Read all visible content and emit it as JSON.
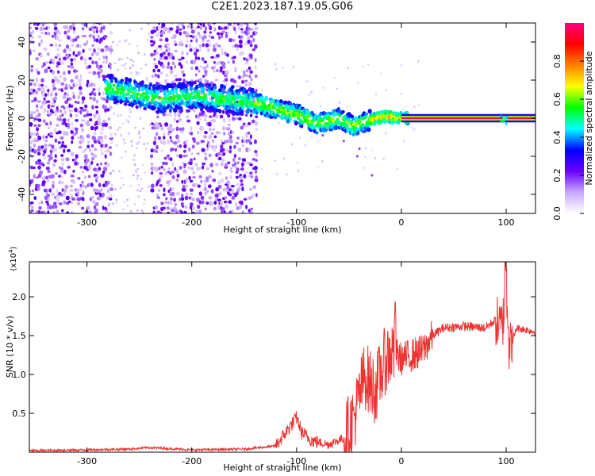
{
  "title": "C2E1.2023.187.19.05.G06",
  "chart_data": [
    {
      "type": "heatmap",
      "xlabel": "Height of straight line (km)",
      "ylabel": "Frequency (Hz)",
      "xlim": [
        -355,
        128
      ],
      "ylim": [
        -50,
        50
      ],
      "xticks": [
        -300,
        -200,
        -100,
        0,
        100
      ],
      "yticks": [
        -40,
        -20,
        0,
        20,
        40
      ],
      "colorbar": {
        "label": "Normalized spectral amplitude",
        "range": [
          0.0,
          1.0
        ],
        "ticks": [
          "0.0",
          "0.2",
          "0.4",
          "0.6",
          "0.8"
        ],
        "colors": [
          "#ffffff",
          "#c8a8ff",
          "#6a00ff",
          "#0000ff",
          "#00ffff",
          "#00ff00",
          "#ffff00",
          "#ff8000",
          "#ff0000",
          "#ff0080"
        ]
      },
      "features": [
        {
          "name": "noise-band",
          "x_range": [
            -355,
            -138
          ],
          "gap": [
            -278,
            -240
          ],
          "freq_range": [
            -50,
            50
          ],
          "level": 0.1
        },
        {
          "name": "signal-trace",
          "points": [
            [
              -280,
              16
            ],
            [
              -255,
              13
            ],
            [
              -230,
              10
            ],
            [
              -200,
              12
            ],
            [
              -170,
              10
            ],
            [
              -140,
              8
            ],
            [
              -120,
              5
            ],
            [
              -100,
              2
            ],
            [
              -80,
              -3
            ],
            [
              -60,
              0
            ],
            [
              -45,
              -4
            ],
            [
              -30,
              -1
            ],
            [
              -15,
              1
            ],
            [
              0,
              0
            ],
            [
              128,
              0
            ]
          ],
          "level": 0.4
        },
        {
          "name": "steady-line",
          "x_range": [
            0,
            128
          ],
          "freq": 0,
          "level": 0.95
        }
      ]
    },
    {
      "type": "line",
      "xlabel": "Height of straight line (km)",
      "ylabel": "SNR (10 * v/v)",
      "y_multiplier": "(x10",
      "y_multiplier_exp": "4",
      "y_multiplier_close": ")",
      "xlim": [
        -355,
        128
      ],
      "ylim": [
        0,
        2.45
      ],
      "xticks": [
        -300,
        -200,
        -100,
        0,
        100
      ],
      "yticks": [
        0.5,
        1.0,
        1.5,
        2.0
      ],
      "series": [
        {
          "color": "#ee3333",
          "x": [
            -355,
            -300,
            -260,
            -240,
            -200,
            -150,
            -120,
            -105,
            -100,
            -95,
            -85,
            -70,
            -55,
            -45,
            -35,
            -25,
            -15,
            -8,
            0,
            10,
            20,
            30,
            40,
            60,
            80,
            90,
            95,
            98,
            100,
            103,
            110,
            128
          ],
          "y": [
            0.02,
            0.03,
            0.04,
            0.06,
            0.03,
            0.04,
            0.08,
            0.35,
            0.45,
            0.25,
            0.15,
            0.1,
            0.18,
            0.45,
            1.0,
            0.8,
            1.2,
            1.3,
            1.2,
            1.25,
            1.3,
            1.5,
            1.6,
            1.62,
            1.6,
            1.7,
            1.6,
            1.75,
            2.3,
            1.3,
            1.6,
            1.55
          ]
        }
      ]
    }
  ]
}
